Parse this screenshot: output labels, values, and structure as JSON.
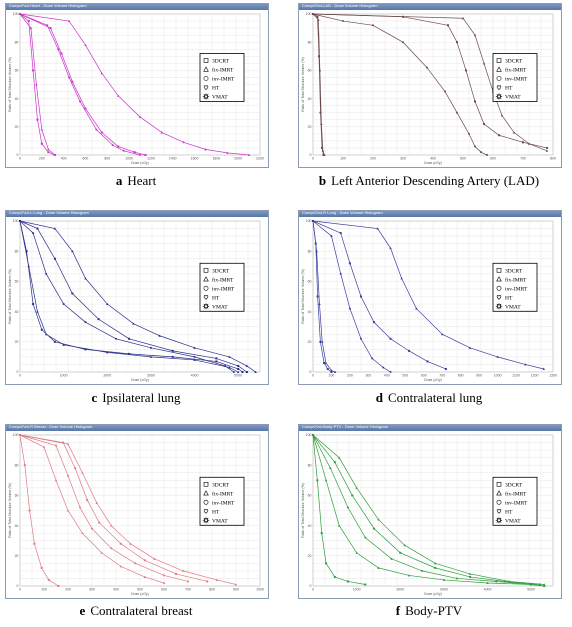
{
  "legend": [
    "3DCRT",
    "fix-IMRT",
    "inv-IMRT",
    "HT",
    "VMAT"
  ],
  "legend_icons": [
    "square-icon",
    "triangle-icon",
    "circle-icon",
    "heart-icon",
    "star-icon"
  ],
  "panels": [
    {
      "id": "heart",
      "window_title": "Compr2Vol-Heart - Dose Volume Histogram",
      "letter": "a",
      "caption": "Heart",
      "color": "#cc33cc",
      "xlabel": "Dose (cGy)",
      "ylabel": "Ratio of Total Structure Volume (%)"
    },
    {
      "id": "lad",
      "window_title": "Compr2Vol-LAD - Dose Volume Histogram",
      "letter": "b",
      "caption": "Left Anterior Descending Artery (LAD)",
      "color": "#6b4a4a",
      "xlabel": "Dose (cGy)",
      "ylabel": "Ratio of Total Structure Volume (%)"
    },
    {
      "id": "ipsilateral-lung",
      "window_title": "Compr2Vol-L Lung - Dose Volume Histogram",
      "letter": "c",
      "caption": "Ipsilateral lung",
      "color": "#2a2f8a",
      "xlabel": "Dose (cGy)",
      "ylabel": "Ratio of Total Structure Volume (%)"
    },
    {
      "id": "contralateral-lung",
      "window_title": "Compr2Vol-R Lung - Dose Volume Histogram",
      "letter": "d",
      "caption": "Contralateral lung",
      "color": "#3a3fa0",
      "xlabel": "Dose (cGy)",
      "ylabel": "Ratio of Total Structure Volume (%)"
    },
    {
      "id": "contralateral-breast",
      "window_title": "Compr2Vol-R Breast - Dose Volume Histogram",
      "letter": "e",
      "caption": "Contralateral breast",
      "color": "#e07a84",
      "xlabel": "Dose (cGy)",
      "ylabel": "Ratio of Total Structure Volume (%)"
    },
    {
      "id": "body-ptv",
      "window_title": "Compr2Vol-Body-PTV - Dose Volume Histogram",
      "letter": "f",
      "caption": "Body-PTV",
      "color": "#2e9e3a",
      "xlabel": "Dose (cGy)",
      "ylabel": "Ratio of Total Structure Volume (%)"
    }
  ],
  "chart_data": [
    {
      "type": "line",
      "panel": "heart",
      "xlim": [
        0,
        2200
      ],
      "ylim": [
        0,
        100
      ],
      "x_ticks": [
        0,
        200,
        400,
        600,
        800,
        1000,
        1200,
        1400,
        1600,
        1800,
        2000,
        2200
      ],
      "y_ticks": [
        0,
        20,
        40,
        60,
        80,
        100
      ],
      "series": [
        {
          "x": [
            0,
            80,
            120,
            160,
            200,
            260,
            320
          ],
          "y": [
            100,
            95,
            60,
            25,
            8,
            2,
            0
          ]
        },
        {
          "x": [
            0,
            100,
            150,
            200,
            260,
            320
          ],
          "y": [
            100,
            90,
            50,
            18,
            4,
            0
          ]
        },
        {
          "x": [
            0,
            250,
            350,
            450,
            550,
            700,
            850,
            950,
            1100
          ],
          "y": [
            100,
            92,
            75,
            55,
            38,
            18,
            7,
            3,
            0
          ]
        },
        {
          "x": [
            0,
            280,
            380,
            480,
            600,
            750,
            900,
            1050,
            1150
          ],
          "y": [
            100,
            90,
            72,
            52,
            33,
            16,
            6,
            2,
            0
          ]
        },
        {
          "x": [
            0,
            450,
            600,
            750,
            900,
            1100,
            1300,
            1500,
            1700,
            1900,
            2100
          ],
          "y": [
            100,
            95,
            78,
            58,
            42,
            27,
            16,
            9,
            4,
            1.5,
            0
          ]
        }
      ]
    },
    {
      "type": "line",
      "panel": "lad",
      "xlim": [
        0,
        800
      ],
      "ylim": [
        0,
        100
      ],
      "x_ticks": [
        0,
        100,
        200,
        300,
        400,
        500,
        600,
        700,
        800
      ],
      "y_ticks": [
        0,
        20,
        40,
        60,
        80,
        100
      ],
      "series": [
        {
          "x": [
            0,
            15,
            20,
            25,
            30,
            35
          ],
          "y": [
            100,
            98,
            70,
            30,
            5,
            0
          ]
        },
        {
          "x": [
            0,
            18,
            23,
            28,
            33,
            38
          ],
          "y": [
            100,
            96,
            60,
            22,
            3,
            0
          ]
        },
        {
          "x": [
            0,
            100,
            200,
            300,
            380,
            440,
            480,
            520,
            540,
            560,
            580
          ],
          "y": [
            100,
            95,
            92,
            80,
            62,
            45,
            30,
            15,
            6,
            2,
            0
          ]
        },
        {
          "x": [
            0,
            300,
            450,
            480,
            510,
            540,
            570,
            620,
            700,
            780
          ],
          "y": [
            100,
            98,
            92,
            80,
            60,
            38,
            22,
            14,
            9,
            5
          ]
        },
        {
          "x": [
            0,
            500,
            540,
            570,
            600,
            630,
            670,
            720,
            780
          ],
          "y": [
            100,
            97,
            85,
            65,
            45,
            28,
            16,
            8,
            3
          ]
        }
      ]
    },
    {
      "type": "line",
      "panel": "ipsilateral-lung",
      "xlim": [
        0,
        5500
      ],
      "ylim": [
        0,
        100
      ],
      "x_ticks": [
        0,
        1000,
        2000,
        3000,
        4000,
        5000
      ],
      "y_ticks": [
        0,
        20,
        40,
        60,
        80,
        100
      ],
      "series": [
        {
          "x": [
            0,
            150,
            300,
            500,
            800,
            1500,
            2500,
            3500,
            4500,
            5000,
            5100
          ],
          "y": [
            100,
            80,
            45,
            28,
            20,
            15,
            12,
            10,
            7,
            2,
            0
          ]
        },
        {
          "x": [
            0,
            200,
            400,
            600,
            1000,
            2000,
            3000,
            4000,
            4800,
            5000
          ],
          "y": [
            100,
            70,
            40,
            25,
            18,
            13,
            10,
            8,
            3,
            0
          ]
        },
        {
          "x": [
            0,
            300,
            600,
            1000,
            1500,
            2200,
            3000,
            4000,
            4700,
            4900
          ],
          "y": [
            100,
            92,
            65,
            45,
            33,
            22,
            16,
            10,
            4,
            0
          ]
        },
        {
          "x": [
            0,
            400,
            800,
            1200,
            1800,
            2500,
            3500,
            4500,
            5000,
            5200
          ],
          "y": [
            100,
            95,
            75,
            52,
            35,
            22,
            14,
            9,
            4,
            0
          ]
        },
        {
          "x": [
            0,
            800,
            1200,
            1500,
            2000,
            2600,
            3200,
            4000,
            4800,
            5200,
            5400
          ],
          "y": [
            100,
            95,
            80,
            62,
            45,
            32,
            24,
            16,
            10,
            4,
            0
          ]
        }
      ]
    },
    {
      "type": "line",
      "panel": "contralateral-lung",
      "xlim": [
        0,
        1300
      ],
      "ylim": [
        0,
        100
      ],
      "x_ticks": [
        0,
        100,
        200,
        300,
        400,
        500,
        600,
        700,
        800,
        900,
        1000,
        1100,
        1200,
        1300
      ],
      "y_ticks": [
        0,
        20,
        40,
        60,
        80,
        100
      ],
      "series": [
        {
          "x": [
            0,
            15,
            25,
            40,
            60,
            80,
            100
          ],
          "y": [
            100,
            85,
            50,
            20,
            6,
            2,
            0
          ]
        },
        {
          "x": [
            0,
            20,
            35,
            50,
            70,
            100,
            120
          ],
          "y": [
            100,
            80,
            45,
            20,
            6,
            1,
            0
          ]
        },
        {
          "x": [
            0,
            100,
            150,
            200,
            260,
            320,
            380,
            420
          ],
          "y": [
            100,
            90,
            65,
            42,
            22,
            9,
            3,
            0
          ]
        },
        {
          "x": [
            0,
            150,
            200,
            260,
            330,
            420,
            520,
            620,
            720
          ],
          "y": [
            100,
            92,
            72,
            50,
            33,
            22,
            14,
            7,
            2
          ]
        },
        {
          "x": [
            0,
            350,
            420,
            480,
            560,
            700,
            850,
            1000,
            1150,
            1250
          ],
          "y": [
            100,
            95,
            82,
            62,
            42,
            25,
            16,
            10,
            5,
            2
          ]
        }
      ]
    },
    {
      "type": "line",
      "panel": "contralateral-breast",
      "xlim": [
        0,
        1000
      ],
      "ylim": [
        0,
        100
      ],
      "x_ticks": [
        0,
        100,
        200,
        300,
        400,
        500,
        600,
        700,
        800,
        900,
        1000
      ],
      "y_ticks": [
        0,
        20,
        40,
        60,
        80,
        100
      ],
      "series": [
        {
          "x": [
            0,
            20,
            40,
            60,
            90,
            120,
            160
          ],
          "y": [
            100,
            80,
            50,
            28,
            12,
            4,
            0
          ]
        },
        {
          "x": [
            0,
            100,
            150,
            200,
            260,
            340,
            420,
            520,
            600
          ],
          "y": [
            100,
            92,
            70,
            50,
            35,
            22,
            13,
            6,
            2
          ]
        },
        {
          "x": [
            0,
            150,
            200,
            250,
            300,
            380,
            480,
            600,
            700
          ],
          "y": [
            100,
            93,
            73,
            52,
            38,
            25,
            15,
            7,
            3
          ]
        },
        {
          "x": [
            0,
            180,
            230,
            280,
            330,
            420,
            520,
            650,
            780
          ],
          "y": [
            100,
            95,
            78,
            57,
            42,
            28,
            17,
            8,
            3
          ]
        },
        {
          "x": [
            0,
            200,
            260,
            320,
            380,
            460,
            560,
            680,
            820,
            900
          ],
          "y": [
            100,
            94,
            75,
            55,
            40,
            28,
            18,
            10,
            4,
            1
          ]
        }
      ]
    },
    {
      "type": "line",
      "panel": "body-ptv",
      "xlim": [
        0,
        5500
      ],
      "ylim": [
        0,
        100
      ],
      "x_ticks": [
        0,
        1000,
        2000,
        3000,
        4000,
        5000
      ],
      "y_ticks": [
        0,
        20,
        40,
        60,
        80,
        100
      ],
      "series": [
        {
          "x": [
            0,
            100,
            200,
            300,
            500,
            800,
            1200
          ],
          "y": [
            100,
            70,
            35,
            15,
            6,
            3,
            1
          ]
        },
        {
          "x": [
            0,
            300,
            600,
            1000,
            1500,
            2200,
            3000,
            4000,
            5000,
            5300
          ],
          "y": [
            100,
            70,
            40,
            22,
            12,
            7,
            4,
            2,
            1,
            0
          ]
        },
        {
          "x": [
            0,
            400,
            800,
            1200,
            1800,
            2500,
            3300,
            4200,
            5000,
            5300
          ],
          "y": [
            100,
            78,
            52,
            32,
            18,
            10,
            5,
            3,
            1,
            0
          ]
        },
        {
          "x": [
            0,
            500,
            900,
            1400,
            2000,
            2800,
            3600,
            4400,
            5200
          ],
          "y": [
            100,
            82,
            60,
            38,
            22,
            12,
            6,
            3,
            1
          ]
        },
        {
          "x": [
            0,
            600,
            1000,
            1500,
            2100,
            2800,
            3600,
            4500,
            5300
          ],
          "y": [
            100,
            85,
            65,
            44,
            27,
            15,
            8,
            3,
            1
          ]
        }
      ]
    }
  ]
}
